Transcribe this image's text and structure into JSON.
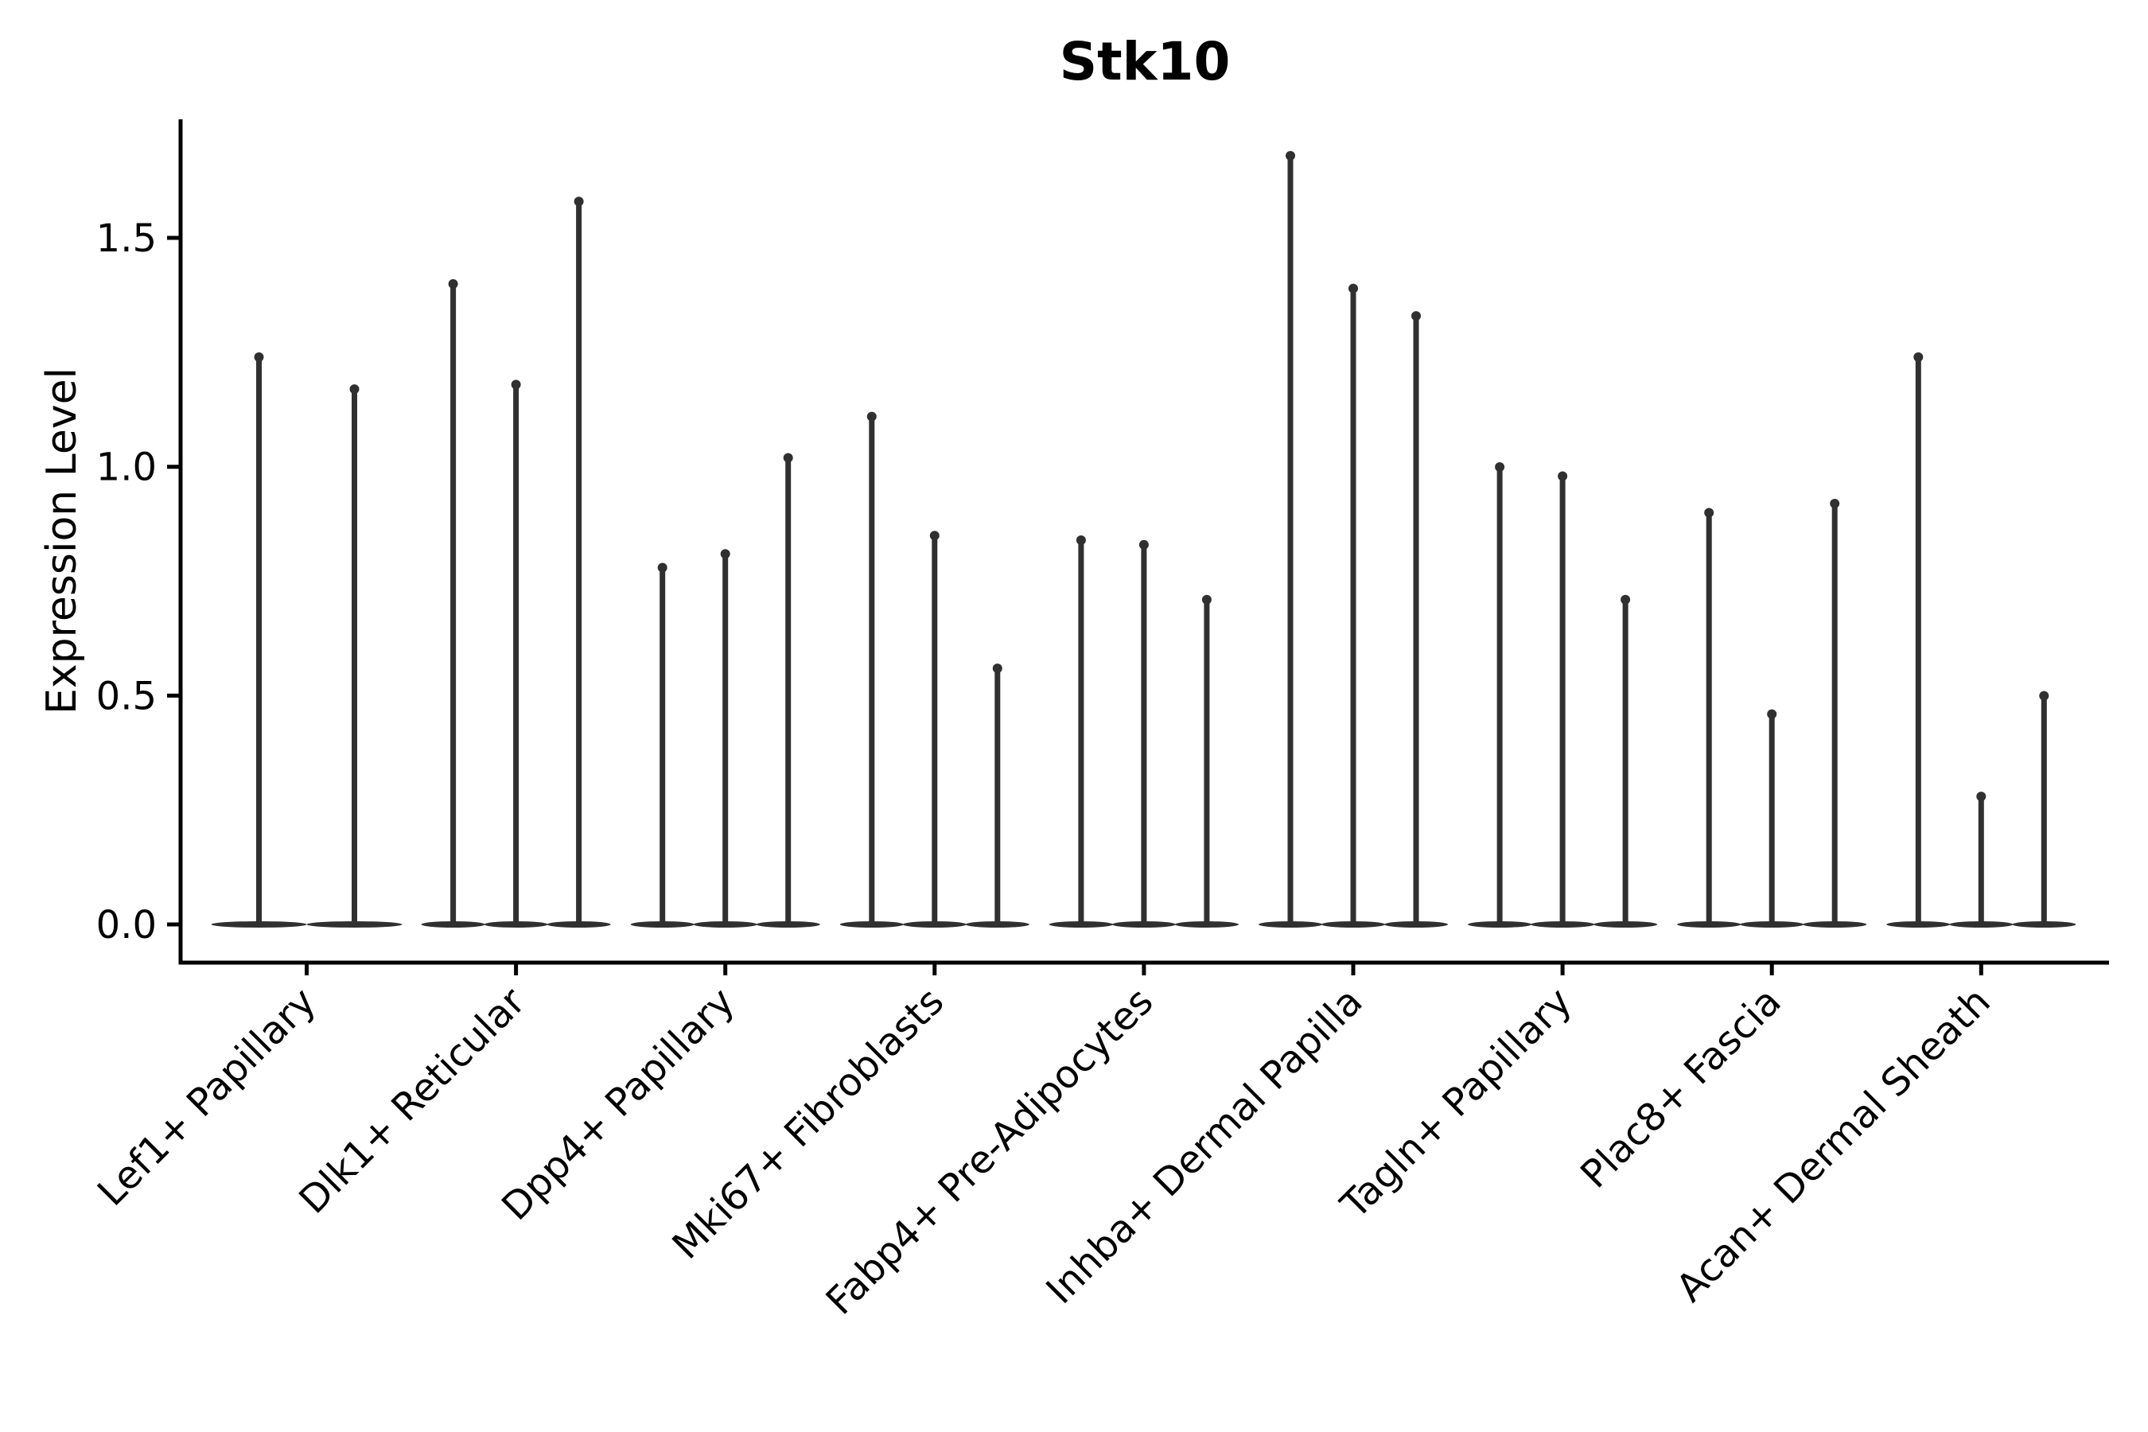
{
  "chart_data": {
    "type": "violin",
    "title": "Stk10",
    "ylabel": "Expression Level",
    "xlabel": "",
    "ytick_labels": [
      "0.0",
      "0.5",
      "1.0",
      "1.5"
    ],
    "ytick_values": [
      0.0,
      0.5,
      1.0,
      1.5
    ],
    "ylim": [
      -0.08,
      1.76
    ],
    "grid": false,
    "legend": null,
    "categories": [
      "Lef1+ Papillary",
      "Dlk1+ Reticular",
      "Dpp4+ Papillary",
      "Mki67+ Fibroblasts",
      "Fabp4+ Pre-Adipocytes",
      "Inhba+ Dermal Papilla",
      "Tagln+ Papillary",
      "Plac8+ Fascia",
      "Acan+ Dermal Sheath"
    ],
    "violin_description": "Each violin has its probability mass concentrated at expression 0 (flat lens at baseline) with a thin vertical density tail reaching up to the listed maximum expression value.",
    "violins_max_per_category": [
      [
        1.25,
        1.18
      ],
      [
        1.41,
        1.19,
        1.59
      ],
      [
        0.79,
        0.82,
        1.03
      ],
      [
        1.12,
        0.86,
        0.57
      ],
      [
        0.85,
        0.84,
        0.72
      ],
      [
        1.69,
        1.4,
        1.34
      ],
      [
        1.01,
        0.99,
        0.72
      ],
      [
        0.91,
        0.47,
        0.93
      ],
      [
        1.25,
        0.29,
        0.51
      ]
    ],
    "colors": {
      "violin": "#303030",
      "axis": "#000000",
      "text": "#000000",
      "background": "#ffffff"
    }
  }
}
